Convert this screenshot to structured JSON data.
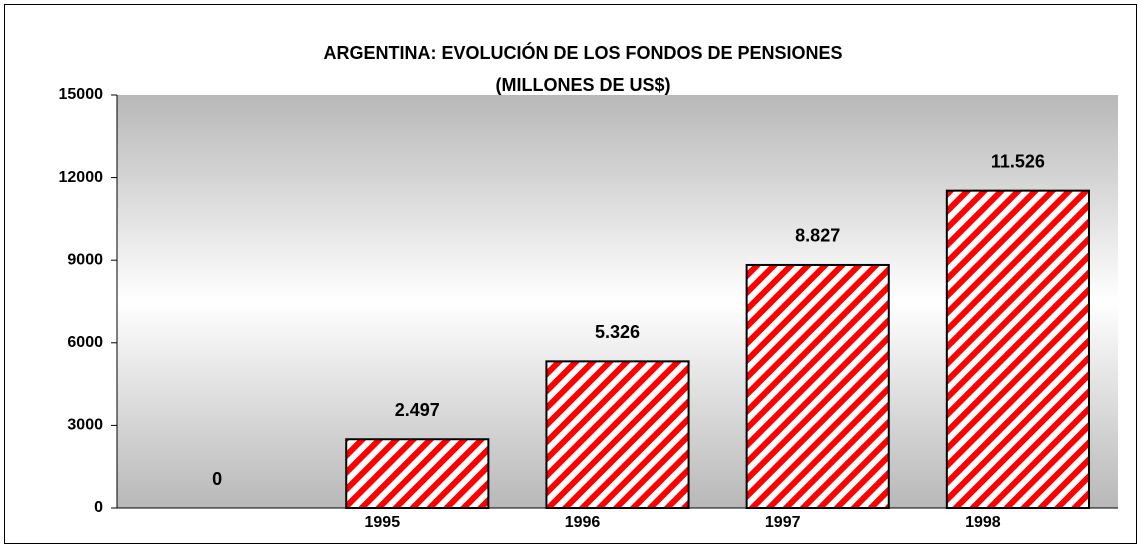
{
  "chart_data": {
    "type": "bar",
    "title": "ARGENTINA: EVOLUCIÓN DE LOS FONDOS DE PENSIONES",
    "subtitle": "(MILLONES DE US$)",
    "categories": [
      null,
      "1995",
      "1996",
      "1997",
      "1998"
    ],
    "values": [
      0,
      2497,
      5326,
      8827,
      11526
    ],
    "value_labels": [
      "0",
      "2.497",
      "5.326",
      "8.827",
      "11.526"
    ],
    "color": "#ff0000",
    "ylim": [
      0,
      15000
    ],
    "yticks": [
      0,
      3000,
      6000,
      9000,
      12000,
      15000
    ],
    "grid": false
  }
}
